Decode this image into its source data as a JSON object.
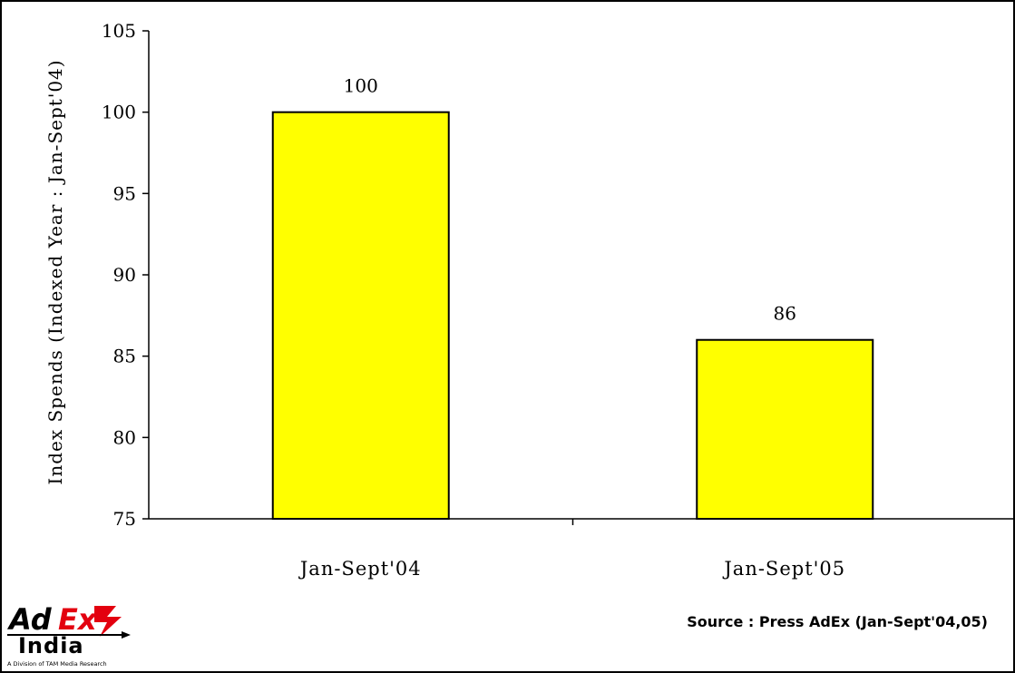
{
  "chart_data": {
    "type": "bar",
    "categories": [
      "Jan-Sept'04",
      "Jan-Sept'05"
    ],
    "values": [
      100,
      86
    ],
    "data_labels": [
      "100",
      "86"
    ],
    "title": "",
    "xlabel": "",
    "ylabel": "Index Spends (Indexed Year : Jan-Sept'04)",
    "ylim": [
      75,
      105
    ],
    "yticks": [
      75,
      80,
      85,
      90,
      95,
      100,
      105
    ],
    "grid": false,
    "bar_color": "#FFFF00",
    "bar_edge_color": "#000000"
  },
  "source_text": "Source : Press AdEx (Jan-Sept'04,05)",
  "logo": {
    "brand_top": "AdEx",
    "brand_bottom": "India",
    "tagline": "A Division of TAM Media Research",
    "colors": {
      "red": "#E3000F",
      "black": "#000000"
    }
  }
}
